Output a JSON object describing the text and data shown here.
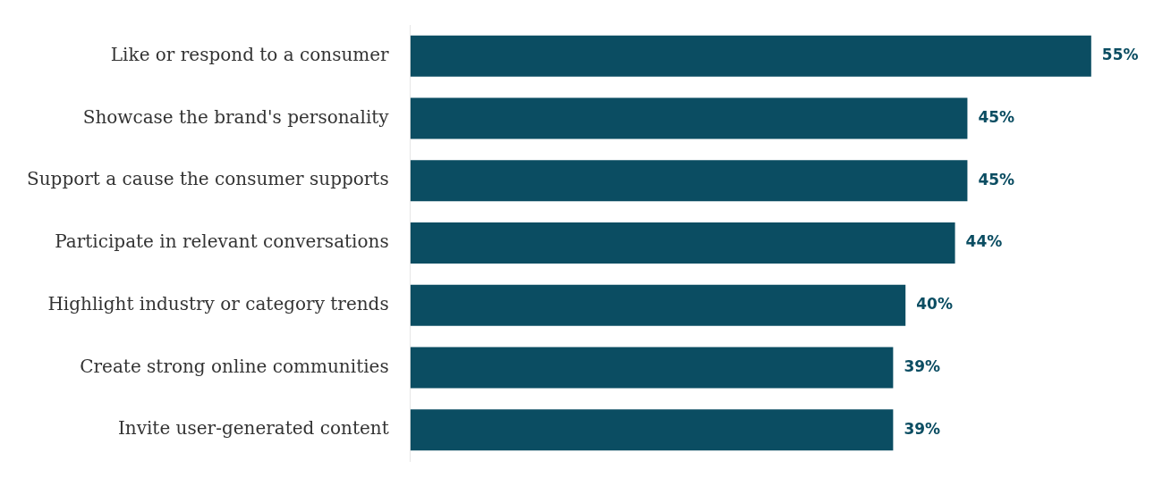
{
  "chart_data": {
    "type": "bar",
    "orientation": "horizontal",
    "categories": [
      "Like or respond to a consumer",
      "Showcase the brand's personality",
      "Support a cause the consumer supports",
      "Participate in relevant conversations",
      "Highlight industry or category trends",
      "Create strong online communities",
      "Invite user-generated content"
    ],
    "values": [
      55,
      45,
      45,
      44,
      40,
      39,
      39
    ],
    "value_labels": [
      "55%",
      "45%",
      "45%",
      "44%",
      "40%",
      "39%",
      "39%"
    ],
    "color": "#0b4d62",
    "tick_labels": "y"
  }
}
